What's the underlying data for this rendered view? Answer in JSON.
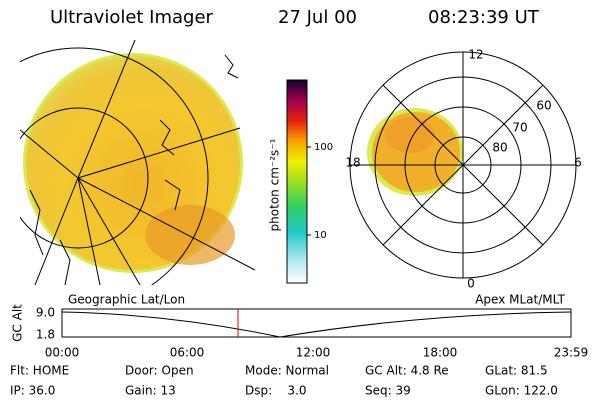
{
  "header": {
    "title": "Ultraviolet Imager",
    "date": "27 Jul 00",
    "time": "08:23:39 UT"
  },
  "colorbar": {
    "label": "photon cm⁻²s⁻¹",
    "ticks": [
      "100",
      "10"
    ]
  },
  "left_panel": {
    "caption": "Geographic Lat/Lon"
  },
  "right_panel": {
    "caption": "Apex MLat/MLT",
    "mlt_labels": [
      "12",
      "18",
      "6",
      "0"
    ],
    "lat_labels": [
      "60",
      "70",
      "80"
    ]
  },
  "timeline": {
    "axis_label": "GC Alt",
    "y_labels": [
      "9.0",
      "1.8"
    ],
    "x_labels": [
      "00:00",
      "06:00",
      "12:00",
      "18:00",
      "23:59"
    ]
  },
  "footer": {
    "rows": [
      [
        "Flt: HOME",
        "Door: Open",
        "Mode: Normal",
        "GC Alt: 4.8 Re",
        "GLat: 81.5"
      ],
      [
        "IP: 36.0",
        "Gain: 13",
        "Dsp:    3.0",
        "Seq: 39",
        "GLon: 122.0"
      ]
    ]
  }
}
